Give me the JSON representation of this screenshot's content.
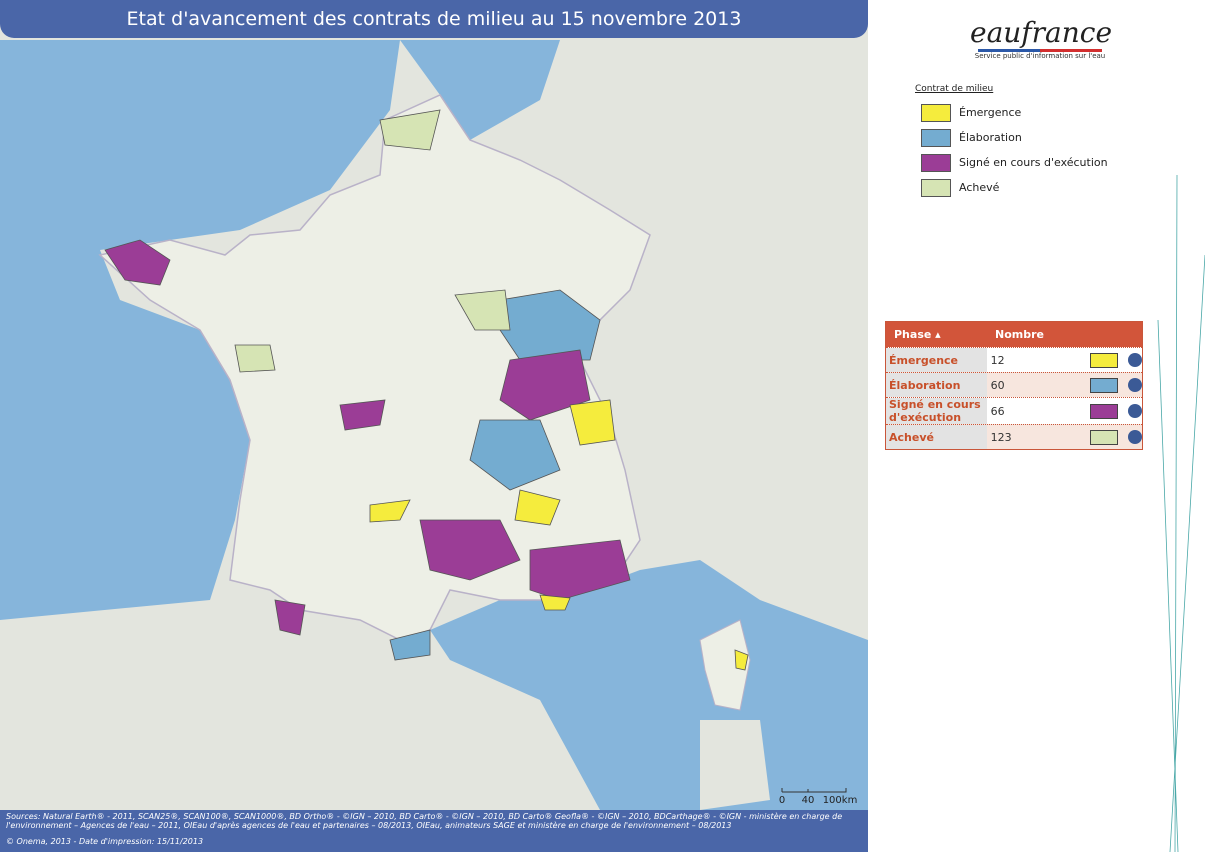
{
  "header": {
    "title": "Etat d'avancement des contrats de milieu au 15 novembre 2013"
  },
  "logo": {
    "name": "eaufrance",
    "tagline": "Service public d'information sur l'eau"
  },
  "legend": {
    "title": "Contrat de milieu",
    "items": [
      {
        "label": "Émergence",
        "color": "#f5ec3d"
      },
      {
        "label": "Élaboration",
        "color": "#74acd0"
      },
      {
        "label": "Signé en cours d'exécution",
        "color": "#9b3d96"
      },
      {
        "label": "Achevé",
        "color": "#d6e4b4"
      }
    ]
  },
  "table": {
    "headers": [
      "Phase",
      "Nombre"
    ],
    "rows": [
      [
        "Émergence",
        "12"
      ],
      [
        "Élaboration",
        "60"
      ],
      [
        "Signé en cours d'exécution",
        "66"
      ],
      [
        "Achevé",
        "123"
      ]
    ]
  },
  "scale": {
    "ticks": [
      "0",
      "40",
      "100km"
    ]
  },
  "footer": {
    "sources": "Sources: Natural Earth® - 2011, SCAN25®, SCAN100®, SCAN1000®, BD Ortho® - ©IGN – 2010, BD Carto® - ©IGN – 2010, BD Carto® Geofla® - ©IGN – 2010, BDCarthage® - ©IGN - ministère en charge de l'environnement – Agences de l'eau – 2011, OIEau d'après agences de l'eau et partenaires – 08/2013, OIEau, animateurs SAGE et ministère en charge de l'environnement – 08/2013",
    "credit": "© Onema, 2013 - Date d'impression: 15/11/2013"
  }
}
